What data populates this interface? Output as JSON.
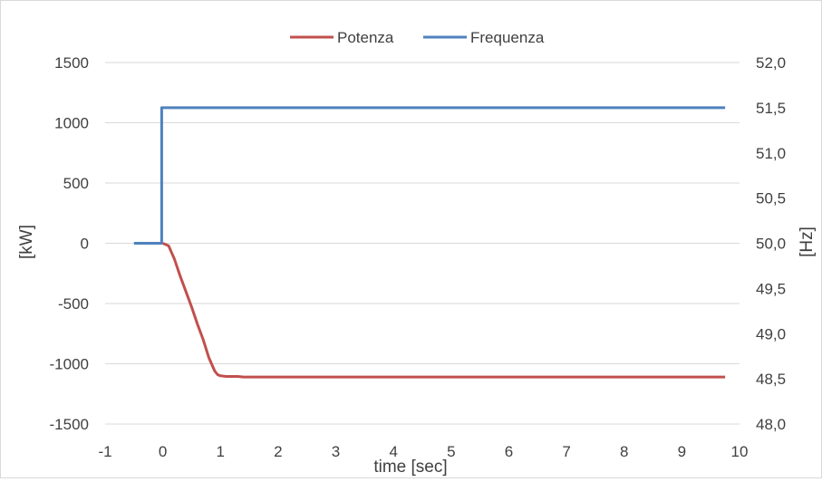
{
  "chart_data": {
    "type": "line",
    "title": "",
    "xlabel": "time [sec]",
    "ylabel_left": "[kW]",
    "ylabel_right": "[Hz]",
    "xlim": [
      -1,
      10
    ],
    "ylim_left": [
      -1500,
      1500
    ],
    "ylim_right": [
      48.0,
      52.0
    ],
    "x_ticks": [
      "-1",
      "0",
      "1",
      "2",
      "3",
      "4",
      "5",
      "6",
      "7",
      "8",
      "9",
      "10"
    ],
    "x_tick_values": [
      -1,
      0,
      1,
      2,
      3,
      4,
      5,
      6,
      7,
      8,
      9,
      10
    ],
    "y_left_ticks": [
      "1500",
      "1000",
      "500",
      "0",
      "-500",
      "-1000",
      "-1500"
    ],
    "y_left_tick_values": [
      1500,
      1000,
      500,
      0,
      -500,
      -1000,
      -1500
    ],
    "y_right_ticks": [
      "52,0",
      "51,5",
      "51,0",
      "50,5",
      "50,0",
      "49,5",
      "49,0",
      "48,5",
      "48,0"
    ],
    "y_right_tick_values": [
      52.0,
      51.5,
      51.0,
      50.5,
      50.0,
      49.5,
      49.0,
      48.5,
      48.0
    ],
    "grid": "horizontal",
    "legend_position": "top",
    "series": [
      {
        "name": "Potenza",
        "axis": "left",
        "color": "#c0504d",
        "x": [
          0.0,
          0.1,
          0.2,
          0.3,
          0.4,
          0.5,
          0.6,
          0.7,
          0.8,
          0.9,
          0.95,
          1.0,
          1.1,
          1.2,
          1.3,
          1.4,
          2,
          3,
          4,
          5,
          6,
          7,
          8,
          9,
          9.75
        ],
        "y": [
          0,
          -20,
          -130,
          -270,
          -400,
          -530,
          -670,
          -800,
          -950,
          -1060,
          -1090,
          -1100,
          -1105,
          -1105,
          -1105,
          -1110,
          -1110,
          -1110,
          -1110,
          -1110,
          -1110,
          -1110,
          -1110,
          -1110,
          -1110
        ]
      },
      {
        "name": "Frequenza",
        "axis": "right",
        "color": "#4f81bd",
        "x": [
          -0.5,
          -0.02,
          -0.02,
          9.75
        ],
        "y": [
          50.0,
          50.0,
          51.5,
          51.5
        ]
      }
    ]
  }
}
